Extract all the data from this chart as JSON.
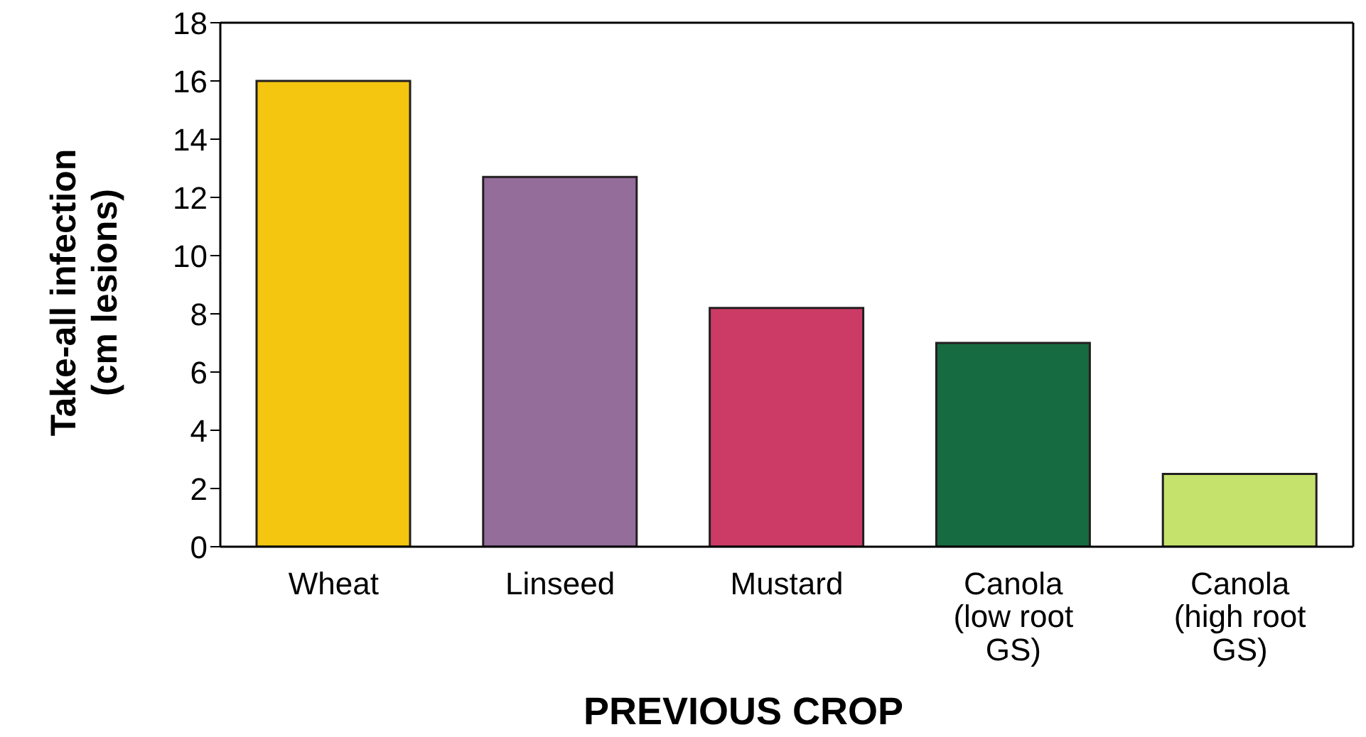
{
  "chart_data": {
    "type": "bar",
    "xlabel": "PREVIOUS CROP",
    "ylabel": "Take-all infection (cm lesions)",
    "categories": [
      "Wheat",
      "Linseed",
      "Mustard",
      "Canola (low root GS)",
      "Canola (high root GS)"
    ],
    "values": [
      16.0,
      12.7,
      8.2,
      7.0,
      2.5
    ],
    "colors": [
      "#f4c60f",
      "#946d9b",
      "#cc3b66",
      "#176b41",
      "#c5e36c"
    ],
    "ylim": [
      0,
      18
    ],
    "yticks": [
      0,
      2,
      4,
      6,
      8,
      10,
      12,
      14,
      16,
      18
    ]
  }
}
